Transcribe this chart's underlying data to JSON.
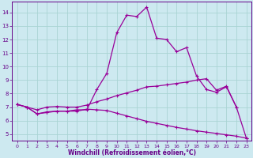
{
  "bg_color": "#cde9f0",
  "line_color": "#990099",
  "grid_color": "#aad4d4",
  "xlabel": "Windchill (Refroidissement éolien,°C)",
  "xlabel_color": "#660088",
  "tick_color": "#660088",
  "xlim": [
    -0.5,
    23.5
  ],
  "ylim": [
    4.5,
    14.8
  ],
  "yticks": [
    5,
    6,
    7,
    8,
    9,
    10,
    11,
    12,
    13,
    14
  ],
  "xticks": [
    0,
    1,
    2,
    3,
    4,
    5,
    6,
    7,
    8,
    9,
    10,
    11,
    12,
    13,
    14,
    15,
    16,
    17,
    18,
    19,
    20,
    21,
    22,
    23
  ],
  "line1_x": [
    0,
    1,
    2,
    3,
    4,
    5,
    6,
    7,
    8,
    9,
    10,
    11,
    12,
    13,
    14,
    15,
    16,
    17,
    18,
    19,
    20,
    21,
    22
  ],
  "line1_y": [
    7.2,
    7.0,
    6.5,
    6.6,
    6.7,
    6.7,
    6.8,
    6.8,
    8.3,
    9.5,
    12.5,
    13.8,
    13.7,
    14.4,
    12.1,
    12.0,
    11.1,
    11.4,
    9.3,
    8.3,
    8.1,
    8.5,
    7.0
  ],
  "line2_x": [
    0,
    1,
    2,
    3,
    4,
    5,
    6,
    7,
    8,
    9,
    10,
    11,
    12,
    13,
    14,
    15,
    16,
    17,
    18,
    19,
    20,
    21,
    22,
    23
  ],
  "line2_y": [
    7.2,
    7.0,
    6.8,
    7.0,
    7.05,
    7.0,
    7.0,
    7.15,
    7.4,
    7.6,
    7.85,
    8.05,
    8.25,
    8.5,
    8.55,
    8.65,
    8.75,
    8.85,
    9.0,
    9.1,
    8.25,
    8.55,
    7.0,
    4.7
  ],
  "line3_x": [
    0,
    1,
    2,
    3,
    4,
    5,
    6,
    7,
    8,
    9,
    10,
    11,
    12,
    13,
    14,
    15,
    16,
    17,
    18,
    19,
    20,
    21,
    22,
    23
  ],
  "line3_y": [
    7.2,
    7.0,
    6.5,
    6.65,
    6.7,
    6.7,
    6.7,
    6.85,
    6.8,
    6.75,
    6.55,
    6.35,
    6.15,
    5.95,
    5.8,
    5.65,
    5.5,
    5.38,
    5.25,
    5.15,
    5.05,
    4.95,
    4.85,
    4.7
  ]
}
